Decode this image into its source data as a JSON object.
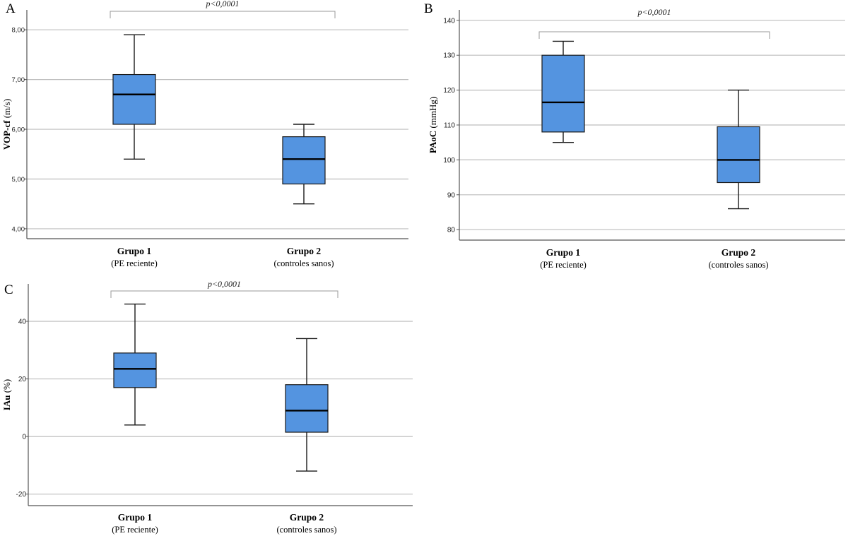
{
  "colors": {
    "box_fill": "#5494e0",
    "box_stroke": "#1a1a1a",
    "grid": "#bdbdbd",
    "axis": "#555555"
  },
  "chart_data": [
    {
      "panel_label": "A",
      "type": "box",
      "ylabel_bold": "VOP-cf",
      "ylabel_unit": "(m/s)",
      "ylim": [
        3.8,
        8.4
      ],
      "yticks": [
        4,
        5,
        6,
        7,
        8
      ],
      "ytick_labels": [
        "4,00",
        "5,00",
        "6,00",
        "7,00",
        "8,00"
      ],
      "significance": "p<0,0001",
      "groups": [
        {
          "name": "Grupo 1",
          "sub": "(PE reciente)",
          "min": 5.4,
          "q1": 6.1,
          "median": 6.7,
          "q3": 7.1,
          "max": 7.9
        },
        {
          "name": "Grupo 2",
          "sub": "(controles sanos)",
          "min": 4.5,
          "q1": 4.9,
          "median": 5.4,
          "q3": 5.85,
          "max": 6.1
        }
      ]
    },
    {
      "panel_label": "B",
      "type": "box",
      "ylabel_bold": "PAoC",
      "ylabel_unit": "(mmHg)",
      "ylim": [
        77,
        143
      ],
      "yticks": [
        80,
        90,
        100,
        110,
        120,
        130,
        140
      ],
      "ytick_labels": [
        "80",
        "90",
        "100",
        "110",
        "120",
        "130",
        "140"
      ],
      "significance": "p<0,0001",
      "groups": [
        {
          "name": "Grupo 1",
          "sub": "(PE reciente)",
          "min": 105,
          "q1": 108,
          "median": 116.5,
          "q3": 130,
          "max": 134
        },
        {
          "name": "Grupo 2",
          "sub": "(controles sanos)",
          "min": 86,
          "q1": 93.5,
          "median": 100,
          "q3": 109.5,
          "max": 120
        }
      ]
    },
    {
      "panel_label": "C",
      "type": "box",
      "ylabel_bold": "IAu",
      "ylabel_unit": "(%)",
      "ylim": [
        -24,
        53
      ],
      "yticks": [
        -20,
        0,
        20,
        40
      ],
      "ytick_labels": [
        "-20",
        "0",
        "20",
        "40"
      ],
      "significance": "p<0,0001",
      "groups": [
        {
          "name": "Grupo 1",
          "sub": "(PE reciente)",
          "min": 4,
          "q1": 17,
          "median": 23.5,
          "q3": 29,
          "max": 46
        },
        {
          "name": "Grupo 2",
          "sub": "(controles sanos)",
          "min": -12,
          "q1": 1.5,
          "median": 9,
          "q3": 18,
          "max": 34
        }
      ]
    }
  ]
}
